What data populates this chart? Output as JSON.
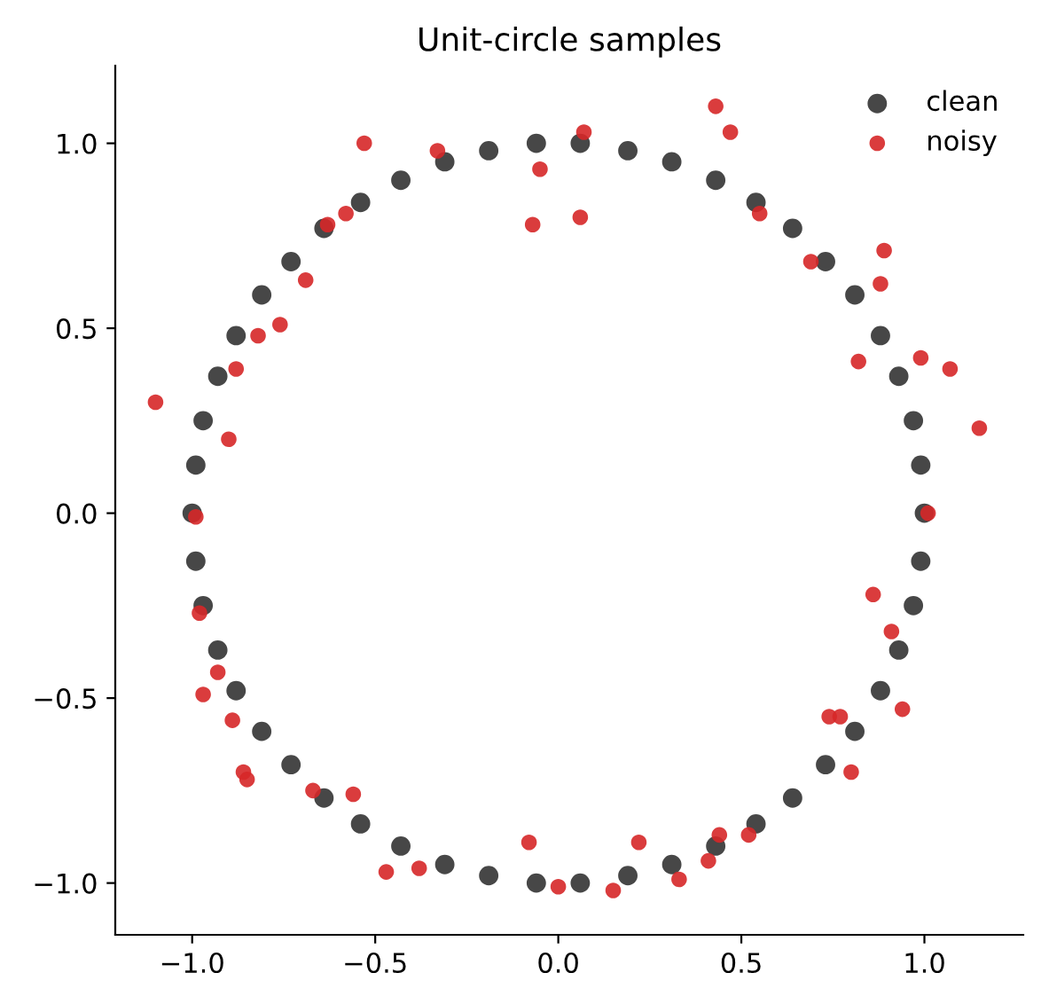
{
  "chart_data": {
    "type": "scatter",
    "title": "Unit-circle samples",
    "xlim": [
      -1.21,
      1.27
    ],
    "ylim": [
      -1.14,
      1.21
    ],
    "xticks": [
      {
        "value": -1.0,
        "label": "−1.0"
      },
      {
        "value": -0.5,
        "label": "−0.5"
      },
      {
        "value": 0.0,
        "label": "0.0"
      },
      {
        "value": 0.5,
        "label": "0.5"
      },
      {
        "value": 1.0,
        "label": "1.0"
      }
    ],
    "yticks": [
      {
        "value": -1.0,
        "label": "−1.0"
      },
      {
        "value": -0.5,
        "label": "−0.5"
      },
      {
        "value": 0.0,
        "label": "0.0"
      },
      {
        "value": 0.5,
        "label": "0.5"
      },
      {
        "value": 1.0,
        "label": "1.0"
      }
    ],
    "legend": "top right",
    "grid": false,
    "marker": "circle",
    "series": [
      {
        "name": "clean",
        "color": "#333333",
        "x": [
          1.0,
          0.99,
          0.97,
          0.93,
          0.88,
          0.81,
          0.73,
          0.64,
          0.54,
          0.43,
          0.31,
          0.19,
          0.06,
          -0.06,
          -0.19,
          -0.31,
          -0.43,
          -0.54,
          -0.64,
          -0.73,
          -0.81,
          -0.88,
          -0.93,
          -0.97,
          -0.99,
          -1.0,
          -0.99,
          -0.97,
          -0.93,
          -0.88,
          -0.81,
          -0.73,
          -0.64,
          -0.54,
          -0.43,
          -0.31,
          -0.19,
          -0.06,
          0.06,
          0.19,
          0.31,
          0.43,
          0.54,
          0.64,
          0.73,
          0.81,
          0.88,
          0.93,
          0.97,
          0.99
        ],
        "values": [
          0.0,
          0.13,
          0.25,
          0.37,
          0.48,
          0.59,
          0.68,
          0.77,
          0.84,
          0.9,
          0.95,
          0.98,
          1.0,
          1.0,
          0.98,
          0.95,
          0.9,
          0.84,
          0.77,
          0.68,
          0.59,
          0.48,
          0.37,
          0.25,
          0.13,
          0.0,
          -0.13,
          -0.25,
          -0.37,
          -0.48,
          -0.59,
          -0.68,
          -0.77,
          -0.84,
          -0.9,
          -0.95,
          -0.98,
          -1.0,
          -1.0,
          -0.98,
          -0.95,
          -0.9,
          -0.84,
          -0.77,
          -0.68,
          -0.59,
          -0.48,
          -0.37,
          -0.25,
          -0.13
        ]
      },
      {
        "name": "noisy",
        "color": "#d62728",
        "x": [
          -1.1,
          -0.53,
          -0.33,
          -0.58,
          -0.63,
          -0.69,
          -0.76,
          -0.82,
          -0.88,
          -0.9,
          -0.05,
          -0.07,
          -0.99,
          0.07,
          0.06,
          0.43,
          0.47,
          0.55,
          0.69,
          0.89,
          0.88,
          0.82,
          0.99,
          1.07,
          1.15,
          1.01,
          -0.98,
          -0.93,
          -0.97,
          -0.89,
          -0.86,
          -0.85,
          -0.67,
          -0.56,
          -0.47,
          -0.38,
          -0.08,
          0.0,
          0.15,
          0.22,
          0.33,
          0.41,
          0.44,
          0.52,
          0.74,
          0.77,
          0.8,
          0.94,
          0.86,
          0.91
        ],
        "values": [
          0.3,
          1.0,
          0.98,
          0.81,
          0.78,
          0.63,
          0.51,
          0.48,
          0.39,
          0.2,
          0.93,
          0.78,
          -0.01,
          1.03,
          0.8,
          1.1,
          1.03,
          0.81,
          0.68,
          0.71,
          0.62,
          0.41,
          0.42,
          0.39,
          0.23,
          0.0,
          -0.27,
          -0.43,
          -0.49,
          -0.56,
          -0.7,
          -0.72,
          -0.75,
          -0.76,
          -0.97,
          -0.96,
          -0.89,
          -1.01,
          -1.02,
          -0.89,
          -0.99,
          -0.94,
          -0.87,
          -0.87,
          -0.55,
          -0.55,
          -0.7,
          -0.53,
          -0.22,
          -0.32
        ]
      }
    ]
  }
}
